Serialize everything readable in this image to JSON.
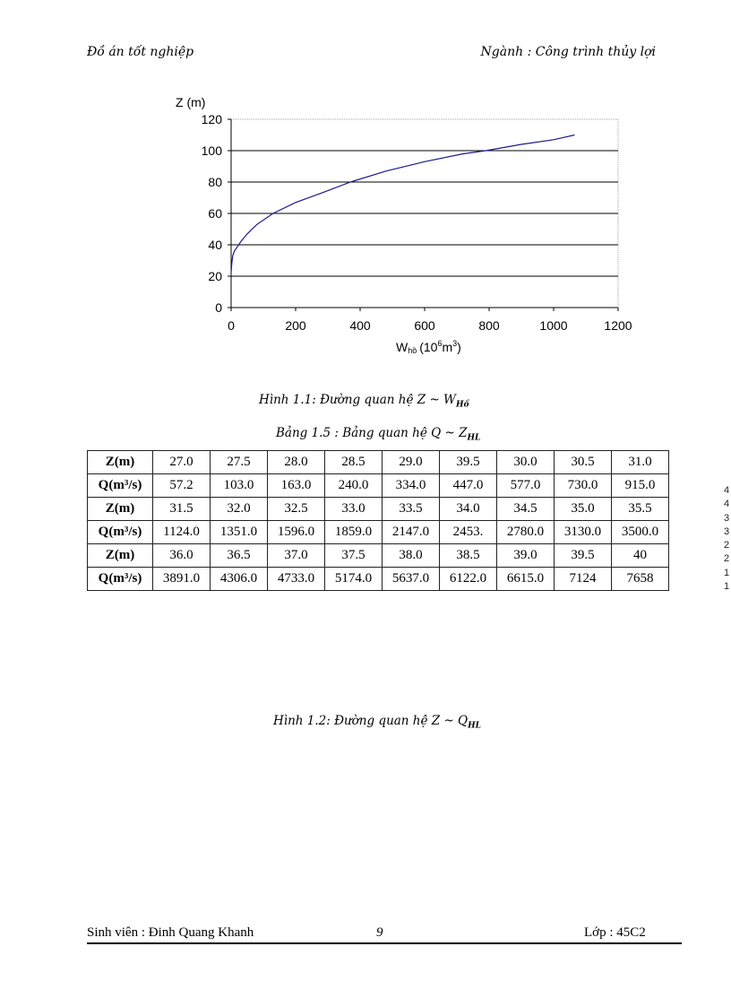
{
  "header": {
    "left": "Đồ án tốt nghiệp",
    "right": "Ngành : Công trình thủy lợi"
  },
  "figure1": {
    "caption_main": "Hình 1.1: Đường quan hệ Z ~ W",
    "caption_sub": "Hồ"
  },
  "chart_data": {
    "type": "line",
    "title": "",
    "xlabel": "Whồ (10^6 m^3)",
    "xlabel_main": "W",
    "xlabel_sub": "hồ",
    "xlabel_unit": "(10",
    "xlabel_exp": "6",
    "xlabel_m": "m",
    "xlabel_exp2": "3",
    "xlabel_close": ")",
    "ylabel": "Z (m)",
    "xlim": [
      0,
      1200
    ],
    "ylim": [
      0,
      120
    ],
    "xticks": [
      0,
      200,
      400,
      600,
      800,
      1000,
      1200
    ],
    "yticks": [
      0,
      20,
      40,
      60,
      80,
      100,
      120
    ],
    "grid": "horizontal",
    "legend": "none",
    "series": [
      {
        "name": "Z ~ W",
        "color": "#1a1a8c",
        "x": [
          0,
          2,
          5,
          10,
          20,
          30,
          50,
          80,
          130,
          200,
          280,
          370,
          480,
          600,
          720,
          790,
          900,
          1000,
          1065
        ],
        "y": [
          22,
          28,
          33,
          36,
          39,
          42,
          47,
          53,
          60,
          67,
          73,
          80,
          87,
          93,
          98,
          100,
          104,
          107,
          110
        ]
      }
    ]
  },
  "table": {
    "caption_main": "Bảng 1.5 : Bảng quan hệ Q ~ Z",
    "caption_sub": "HL",
    "rows": [
      {
        "label": "Z(m)",
        "values": [
          "27.0",
          "27.5",
          "28.0",
          "28.5",
          "29.0",
          "39.5",
          "30.0",
          "30.5",
          "31.0"
        ]
      },
      {
        "label": "Q(m³/s)",
        "values": [
          "57.2",
          "103.0",
          "163.0",
          "240.0",
          "334.0",
          "447.0",
          "577.0",
          "730.0",
          "915.0"
        ]
      },
      {
        "label": "Z(m)",
        "values": [
          "31.5",
          "32.0",
          "32.5",
          "33.0",
          "33.5",
          "34.0",
          "34.5",
          "35.0",
          "35.5"
        ]
      },
      {
        "label": "Q(m³/s)",
        "values": [
          "1124.0",
          "1351.0",
          "1596.0",
          "1859.0",
          "2147.0",
          "2453.",
          "2780.0",
          "3130.0",
          "3500.0"
        ]
      },
      {
        "label": "Z(m)",
        "values": [
          "36.0",
          "36.5",
          "37.0",
          "37.5",
          "38.0",
          "38.5",
          "39.0",
          "39.5",
          "40"
        ]
      },
      {
        "label": "Q(m³/s)",
        "values": [
          "3891.0",
          "4306.0",
          "4733.0",
          "5174.0",
          "5637.0",
          "6122.0",
          "6615.0",
          "7124",
          "7658"
        ]
      }
    ]
  },
  "side_digits": [
    "4",
    "4",
    "3",
    "3",
    "2",
    "2",
    "1",
    "1"
  ],
  "figure2": {
    "caption_main": "Hình 1.2: Đường quan hệ Z ~ Q",
    "caption_sub": "HL"
  },
  "footer": {
    "left": "Sinh viên : Đinh Quang  Khanh",
    "page": "9",
    "right": "Lớp : 45C2"
  }
}
